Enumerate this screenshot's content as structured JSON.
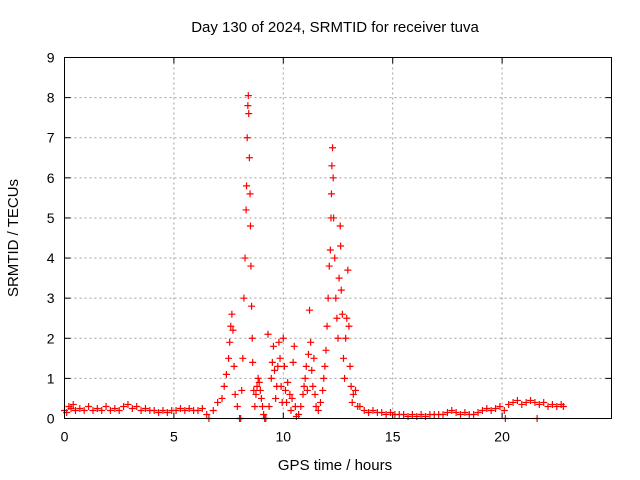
{
  "chart_data": {
    "type": "scatter",
    "title": "Day 130 of 2024, SRMTID for receiver tuva",
    "xlabel": "GPS time / hours",
    "ylabel": "SRMTID / TECUs",
    "xlim": [
      0,
      25
    ],
    "ylim": [
      0,
      9
    ],
    "xticks": [
      0,
      5,
      10,
      15,
      20
    ],
    "yticks": [
      0,
      1,
      2,
      3,
      4,
      5,
      6,
      7,
      8,
      9
    ],
    "grid": true,
    "marker": "+",
    "series_color": "#ff0000",
    "series": [
      {
        "name": "tuva",
        "points": [
          [
            0.0,
            0.2
          ],
          [
            0.1,
            0.15
          ],
          [
            0.2,
            0.3
          ],
          [
            0.3,
            0.25
          ],
          [
            0.4,
            0.35
          ],
          [
            0.5,
            0.2
          ],
          [
            0.7,
            0.25
          ],
          [
            0.9,
            0.2
          ],
          [
            1.1,
            0.3
          ],
          [
            1.3,
            0.2
          ],
          [
            1.5,
            0.25
          ],
          [
            1.7,
            0.2
          ],
          [
            1.9,
            0.3
          ],
          [
            2.1,
            0.2
          ],
          [
            2.3,
            0.25
          ],
          [
            2.5,
            0.2
          ],
          [
            2.7,
            0.3
          ],
          [
            2.9,
            0.35
          ],
          [
            3.1,
            0.25
          ],
          [
            3.3,
            0.3
          ],
          [
            3.5,
            0.2
          ],
          [
            3.7,
            0.25
          ],
          [
            3.9,
            0.2
          ],
          [
            4.1,
            0.2
          ],
          [
            4.3,
            0.15
          ],
          [
            4.5,
            0.2
          ],
          [
            4.7,
            0.15
          ],
          [
            4.9,
            0.2
          ],
          [
            5.1,
            0.2
          ],
          [
            5.3,
            0.25
          ],
          [
            5.5,
            0.2
          ],
          [
            5.7,
            0.25
          ],
          [
            5.9,
            0.2
          ],
          [
            6.1,
            0.2
          ],
          [
            6.3,
            0.25
          ],
          [
            6.5,
            0.1
          ],
          [
            6.6,
            0.0
          ],
          [
            6.8,
            0.2
          ],
          [
            7.0,
            0.4
          ],
          [
            7.2,
            0.5
          ],
          [
            7.3,
            0.8
          ],
          [
            7.4,
            1.1
          ],
          [
            7.5,
            1.5
          ],
          [
            7.55,
            1.9
          ],
          [
            7.6,
            2.3
          ],
          [
            7.65,
            2.6
          ],
          [
            7.7,
            2.2
          ],
          [
            7.75,
            1.3
          ],
          [
            7.8,
            0.6
          ],
          [
            7.9,
            0.3
          ],
          [
            8.0,
            0.0
          ],
          [
            8.05,
            0.0
          ],
          [
            8.1,
            0.7
          ],
          [
            8.15,
            1.5
          ],
          [
            8.2,
            3.0
          ],
          [
            8.25,
            4.0
          ],
          [
            8.3,
            5.2
          ],
          [
            8.32,
            5.8
          ],
          [
            8.35,
            7.0
          ],
          [
            8.38,
            7.8
          ],
          [
            8.4,
            8.05
          ],
          [
            8.42,
            7.6
          ],
          [
            8.45,
            6.5
          ],
          [
            8.48,
            5.6
          ],
          [
            8.5,
            4.8
          ],
          [
            8.52,
            3.8
          ],
          [
            8.55,
            2.8
          ],
          [
            8.58,
            2.0
          ],
          [
            8.6,
            1.4
          ],
          [
            8.65,
            0.7
          ],
          [
            8.7,
            0.3
          ],
          [
            8.75,
            0.6
          ],
          [
            8.8,
            0.8
          ],
          [
            8.85,
            1.0
          ],
          [
            8.9,
            0.9
          ],
          [
            8.95,
            0.7
          ],
          [
            9.0,
            0.5
          ],
          [
            9.05,
            0.3
          ],
          [
            9.1,
            0.1
          ],
          [
            9.15,
            0.0
          ],
          [
            9.2,
            0.0
          ],
          [
            9.3,
            2.1
          ],
          [
            9.35,
            0.3
          ],
          [
            9.45,
            1.0
          ],
          [
            9.5,
            1.4
          ],
          [
            9.55,
            1.8
          ],
          [
            9.6,
            1.2
          ],
          [
            9.65,
            0.5
          ],
          [
            9.7,
            0.8
          ],
          [
            9.75,
            1.3
          ],
          [
            9.8,
            1.9
          ],
          [
            9.85,
            1.5
          ],
          [
            9.9,
            0.8
          ],
          [
            9.95,
            0.4
          ],
          [
            10.0,
            2.0
          ],
          [
            10.05,
            1.3
          ],
          [
            10.1,
            0.7
          ],
          [
            10.15,
            0.4
          ],
          [
            10.2,
            0.9
          ],
          [
            10.3,
            0.6
          ],
          [
            10.35,
            0.2
          ],
          [
            10.4,
            0.5
          ],
          [
            10.45,
            1.4
          ],
          [
            10.5,
            1.8
          ],
          [
            10.55,
            0.3
          ],
          [
            10.6,
            0.05
          ],
          [
            10.7,
            0.1
          ],
          [
            10.8,
            0.3
          ],
          [
            10.9,
            0.6
          ],
          [
            10.95,
            0.8
          ],
          [
            11.0,
            1.0
          ],
          [
            11.05,
            1.3
          ],
          [
            11.1,
            0.7
          ],
          [
            11.15,
            1.6
          ],
          [
            11.2,
            2.7
          ],
          [
            11.25,
            1.9
          ],
          [
            11.3,
            1.2
          ],
          [
            11.35,
            0.8
          ],
          [
            11.4,
            1.5
          ],
          [
            11.45,
            0.6
          ],
          [
            11.5,
            0.3
          ],
          [
            11.6,
            0.2
          ],
          [
            11.7,
            0.4
          ],
          [
            11.8,
            0.7
          ],
          [
            11.85,
            1.0
          ],
          [
            11.9,
            1.3
          ],
          [
            11.95,
            1.7
          ],
          [
            12.0,
            2.3
          ],
          [
            12.05,
            3.0
          ],
          [
            12.1,
            3.8
          ],
          [
            12.15,
            4.2
          ],
          [
            12.18,
            5.0
          ],
          [
            12.2,
            5.6
          ],
          [
            12.22,
            6.3
          ],
          [
            12.25,
            6.75
          ],
          [
            12.28,
            6.0
          ],
          [
            12.3,
            5.0
          ],
          [
            12.35,
            4.0
          ],
          [
            12.4,
            3.0
          ],
          [
            12.45,
            2.5
          ],
          [
            12.5,
            2.0
          ],
          [
            12.55,
            3.5
          ],
          [
            12.6,
            4.8
          ],
          [
            12.62,
            4.3
          ],
          [
            12.65,
            3.2
          ],
          [
            12.7,
            2.6
          ],
          [
            12.75,
            1.5
          ],
          [
            12.8,
            1.0
          ],
          [
            12.85,
            2.0
          ],
          [
            12.9,
            2.5
          ],
          [
            12.95,
            3.7
          ],
          [
            13.0,
            2.3
          ],
          [
            13.05,
            1.3
          ],
          [
            13.1,
            0.8
          ],
          [
            13.15,
            0.4
          ],
          [
            13.2,
            0.6
          ],
          [
            13.3,
            0.7
          ],
          [
            13.4,
            0.3
          ],
          [
            13.5,
            0.3
          ],
          [
            13.7,
            0.2
          ],
          [
            13.9,
            0.15
          ],
          [
            14.1,
            0.2
          ],
          [
            14.3,
            0.15
          ],
          [
            14.5,
            0.15
          ],
          [
            14.7,
            0.1
          ],
          [
            14.9,
            0.15
          ],
          [
            15.1,
            0.1
          ],
          [
            15.3,
            0.1
          ],
          [
            15.5,
            0.1
          ],
          [
            15.7,
            0.05
          ],
          [
            15.9,
            0.1
          ],
          [
            16.1,
            0.05
          ],
          [
            16.3,
            0.1
          ],
          [
            16.5,
            0.05
          ],
          [
            16.7,
            0.1
          ],
          [
            16.9,
            0.1
          ],
          [
            17.1,
            0.1
          ],
          [
            17.3,
            0.1
          ],
          [
            17.5,
            0.15
          ],
          [
            17.7,
            0.2
          ],
          [
            17.9,
            0.15
          ],
          [
            18.1,
            0.1
          ],
          [
            18.3,
            0.15
          ],
          [
            18.5,
            0.1
          ],
          [
            18.7,
            0.1
          ],
          [
            18.9,
            0.15
          ],
          [
            19.1,
            0.2
          ],
          [
            19.3,
            0.25
          ],
          [
            19.5,
            0.2
          ],
          [
            19.7,
            0.25
          ],
          [
            19.9,
            0.3
          ],
          [
            20.1,
            0.2
          ],
          [
            20.15,
            0.0
          ],
          [
            20.3,
            0.35
          ],
          [
            20.5,
            0.4
          ],
          [
            20.7,
            0.45
          ],
          [
            20.9,
            0.35
          ],
          [
            21.1,
            0.4
          ],
          [
            21.3,
            0.45
          ],
          [
            21.5,
            0.4
          ],
          [
            21.6,
            0.0
          ],
          [
            21.7,
            0.35
          ],
          [
            21.9,
            0.4
          ],
          [
            22.1,
            0.3
          ],
          [
            22.3,
            0.35
          ],
          [
            22.5,
            0.3
          ],
          [
            22.7,
            0.35
          ],
          [
            22.8,
            0.3
          ]
        ]
      }
    ]
  }
}
